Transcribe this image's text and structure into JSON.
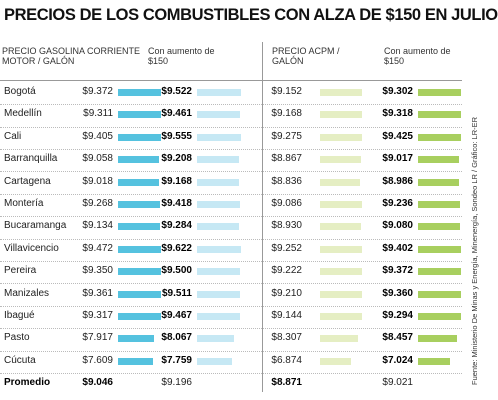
{
  "chart_data": {
    "type": "bar",
    "title": "PRECIOS DE LOS COMBUSTIBLES CON ALZA DE $150 EN JULIO",
    "categories": [
      "Bogotá",
      "Medellín",
      "Cali",
      "Barranquilla",
      "Cartagena",
      "Montería",
      "Bucaramanga",
      "Villavicencio",
      "Pereira",
      "Manizales",
      "Ibagué",
      "Pasto",
      "Cúcuta"
    ],
    "series": [
      {
        "name": "PRECIO GASOLINA CORRIENTE MOTOR / GALÓN",
        "color": "#55c2df",
        "values": [
          9372,
          9311,
          9405,
          9058,
          9018,
          9268,
          9134,
          9472,
          9350,
          9361,
          9317,
          7917,
          7609
        ],
        "value_labels": [
          "$9.372",
          "$9.311",
          "$9.405",
          "$9.058",
          "$9.018",
          "$9.268",
          "$9.134",
          "$9.472",
          "$9.350",
          "$9.361",
          "$9.317",
          "$7.917",
          "$7.609"
        ]
      },
      {
        "name": "Con aumento de $150",
        "color": "#c6e8f4",
        "values": [
          9522,
          9461,
          9555,
          9208,
          9168,
          9418,
          9284,
          9622,
          9500,
          9511,
          9467,
          8067,
          7759
        ],
        "value_labels": [
          "$9.522",
          "$9.461",
          "$9.555",
          "$9.208",
          "$9.168",
          "$9.418",
          "$9.284",
          "$9.622",
          "$9.500",
          "$9.511",
          "$9.467",
          "$8.067",
          "$7.759"
        ]
      },
      {
        "name": "PRECIO ACPM / GALÓN",
        "color": "#e5eec3",
        "values": [
          9152,
          9168,
          9275,
          8867,
          8836,
          9086,
          8930,
          9252,
          9222,
          9210,
          9144,
          8307,
          6874
        ],
        "value_labels": [
          "$9.152",
          "$9.168",
          "$9.275",
          "$8.867",
          "$8.836",
          "$9.086",
          "$8.930",
          "$9.252",
          "$9.222",
          "$9.210",
          "$9.144",
          "$8.307",
          "$6.874"
        ]
      },
      {
        "name": "Con aumento de $150",
        "color": "#a8cf5f",
        "values": [
          9302,
          9318,
          9425,
          9017,
          8986,
          9236,
          9080,
          9402,
          9372,
          9360,
          9294,
          8457,
          7024
        ],
        "value_labels": [
          "$9.302",
          "$9.318",
          "$9.425",
          "$9.017",
          "$8.986",
          "$9.236",
          "$9.080",
          "$9.402",
          "$9.372",
          "$9.360",
          "$9.294",
          "$8.457",
          "$7.024"
        ]
      }
    ],
    "average": {
      "label": "Promedio",
      "values": [
        9046,
        9196,
        8871,
        9021
      ],
      "value_labels": [
        "$9.046",
        "$9.196",
        "$8.871",
        "$9.021"
      ]
    },
    "source": "Fuente: Ministerio De Minas y Energía, Minenergía, Sondeo LR / Gráfico: LR-ER"
  }
}
